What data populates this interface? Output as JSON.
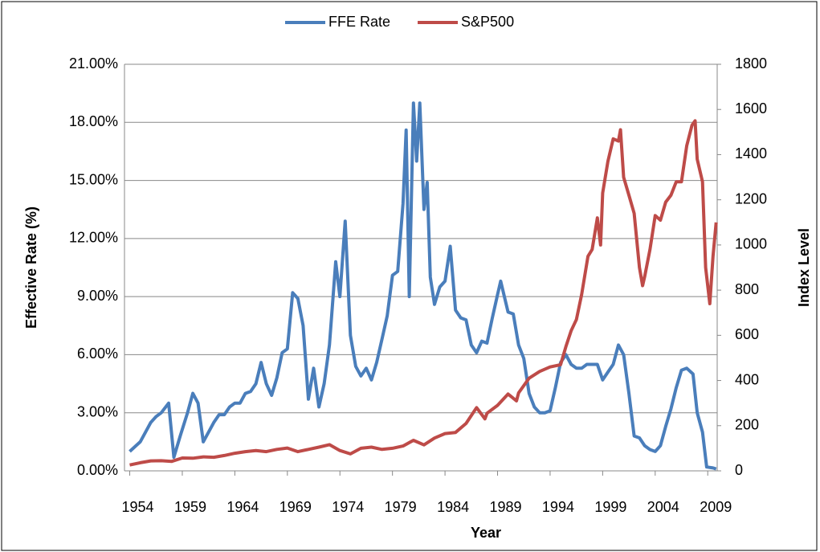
{
  "chart_data": {
    "type": "line",
    "x_label": "Year",
    "y_label": "Effective Rate (%)",
    "y2_label": "Index Level",
    "xlim": [
      1953.5,
      2009.9
    ],
    "xticks": [
      1954,
      1959,
      1964,
      1969,
      1974,
      1979,
      1984,
      1989,
      1994,
      1999,
      2004,
      2009
    ],
    "ylim": [
      0,
      21
    ],
    "yticks": [
      {
        "value": 0,
        "label": "0.00%"
      },
      {
        "value": 3,
        "label": "3.00%"
      },
      {
        "value": 6,
        "label": "6.00%"
      },
      {
        "value": 9,
        "label": "9.00%"
      },
      {
        "value": 12,
        "label": "12.00%"
      },
      {
        "value": 15,
        "label": "15.00%"
      },
      {
        "value": 18,
        "label": "18.00%"
      },
      {
        "value": 21,
        "label": "21.00%"
      }
    ],
    "y2lim": [
      0,
      1800
    ],
    "y2ticks": [
      0,
      200,
      400,
      600,
      800,
      1000,
      1200,
      1400,
      1600,
      1800
    ],
    "grid": true,
    "legend": "top",
    "series": [
      {
        "name": "FFE Rate",
        "color": "#4a7ebb",
        "axis": "y",
        "x": [
          1954,
          1955,
          1955.5,
          1956,
          1956.5,
          1957,
          1957.7,
          1958.2,
          1958.8,
          1959.5,
          1960,
          1960.5,
          1961,
          1961.5,
          1962,
          1962.5,
          1963,
          1963.5,
          1964,
          1964.5,
          1965,
          1965.5,
          1966,
          1966.5,
          1967,
          1967.5,
          1968,
          1968.5,
          1969,
          1969.5,
          1970,
          1970.5,
          1971,
          1971.5,
          1972,
          1972.5,
          1973,
          1973.6,
          1974,
          1974.5,
          1975,
          1975.5,
          1976,
          1976.5,
          1977,
          1977.5,
          1978,
          1978.5,
          1979,
          1979.5,
          1980,
          1980.3,
          1980.6,
          1981,
          1981.3,
          1981.6,
          1982,
          1982.3,
          1982.6,
          1983,
          1983.5,
          1984,
          1984.5,
          1985,
          1985.5,
          1986,
          1986.5,
          1987,
          1987.5,
          1988,
          1988.5,
          1989,
          1989.3,
          1990,
          1990.5,
          1991,
          1991.5,
          1992,
          1992.5,
          1993,
          1993.5,
          1994,
          1994.5,
          1995,
          1995.5,
          1996,
          1996.5,
          1997,
          1997.5,
          1998,
          1998.5,
          1999,
          1999.5,
          2000,
          2000.5,
          2001,
          2001.5,
          2002,
          2002.5,
          2003,
          2003.5,
          2004,
          2004.5,
          2005,
          2005.5,
          2006,
          2006.5,
          2007,
          2007.6,
          2008,
          2008.5,
          2008.9,
          2009.5,
          2009.8
        ],
        "values": [
          1.0,
          1.5,
          2.0,
          2.5,
          2.8,
          3.0,
          3.5,
          0.7,
          1.8,
          3.0,
          4.0,
          3.5,
          1.5,
          2.0,
          2.5,
          2.9,
          2.9,
          3.3,
          3.5,
          3.5,
          4.0,
          4.1,
          4.5,
          5.6,
          4.5,
          3.9,
          4.8,
          6.1,
          6.3,
          9.2,
          8.9,
          7.5,
          3.7,
          5.3,
          3.3,
          4.5,
          6.5,
          10.8,
          9.0,
          12.9,
          7.0,
          5.4,
          4.9,
          5.3,
          4.7,
          5.6,
          6.8,
          8.0,
          10.1,
          10.3,
          13.8,
          17.6,
          9.0,
          19.0,
          16.0,
          19.0,
          13.5,
          14.9,
          10.0,
          8.6,
          9.5,
          9.8,
          11.6,
          8.3,
          7.9,
          7.8,
          6.5,
          6.1,
          6.7,
          6.6,
          7.9,
          9.1,
          9.8,
          8.2,
          8.1,
          6.5,
          5.8,
          4.0,
          3.3,
          3.0,
          3.0,
          3.1,
          4.3,
          5.6,
          6.0,
          5.5,
          5.3,
          5.3,
          5.5,
          5.5,
          5.5,
          4.7,
          5.1,
          5.5,
          6.5,
          6.0,
          4.0,
          1.8,
          1.7,
          1.3,
          1.1,
          1.0,
          1.3,
          2.3,
          3.2,
          4.3,
          5.2,
          5.3,
          5.0,
          3.0,
          2.0,
          0.2,
          0.15,
          0.1
        ]
      },
      {
        "name": "S&P500",
        "color": "#be4b48",
        "axis": "y2",
        "x": [
          1954,
          1955,
          1956,
          1957,
          1958,
          1959,
          1960,
          1961,
          1962,
          1963,
          1964,
          1965,
          1966,
          1967,
          1968,
          1969,
          1970,
          1971,
          1972,
          1973,
          1974,
          1975,
          1976,
          1977,
          1978,
          1979,
          1980,
          1981,
          1982,
          1983,
          1984,
          1985,
          1986,
          1987,
          1987.8,
          1988,
          1989,
          1990,
          1990.8,
          1991,
          1992,
          1993,
          1994,
          1995,
          1995.5,
          1996,
          1996.5,
          1997,
          1997.6,
          1998,
          1998.5,
          1998.8,
          1999,
          1999.5,
          2000,
          2000.5,
          2000.7,
          2001,
          2001.5,
          2002,
          2002.5,
          2002.8,
          2003,
          2003.5,
          2004,
          2004.5,
          2005,
          2005.5,
          2006,
          2006.5,
          2007,
          2007.5,
          2007.8,
          2008,
          2008.5,
          2008.8,
          2009.2,
          2009.5,
          2009.8
        ],
        "values": [
          26,
          36,
          44,
          45,
          42,
          57,
          56,
          62,
          60,
          68,
          78,
          85,
          90,
          85,
          95,
          101,
          85,
          95,
          105,
          116,
          90,
          75,
          100,
          105,
          95,
          100,
          110,
          135,
          115,
          145,
          165,
          170,
          210,
          280,
          230,
          255,
          290,
          340,
          310,
          345,
          410,
          440,
          460,
          470,
          550,
          620,
          670,
          780,
          950,
          980,
          1120,
          1000,
          1230,
          1370,
          1470,
          1460,
          1510,
          1300,
          1220,
          1140,
          900,
          820,
          860,
          980,
          1130,
          1110,
          1190,
          1220,
          1280,
          1280,
          1440,
          1530,
          1550,
          1380,
          1280,
          900,
          740,
          950,
          1100
        ]
      }
    ]
  }
}
